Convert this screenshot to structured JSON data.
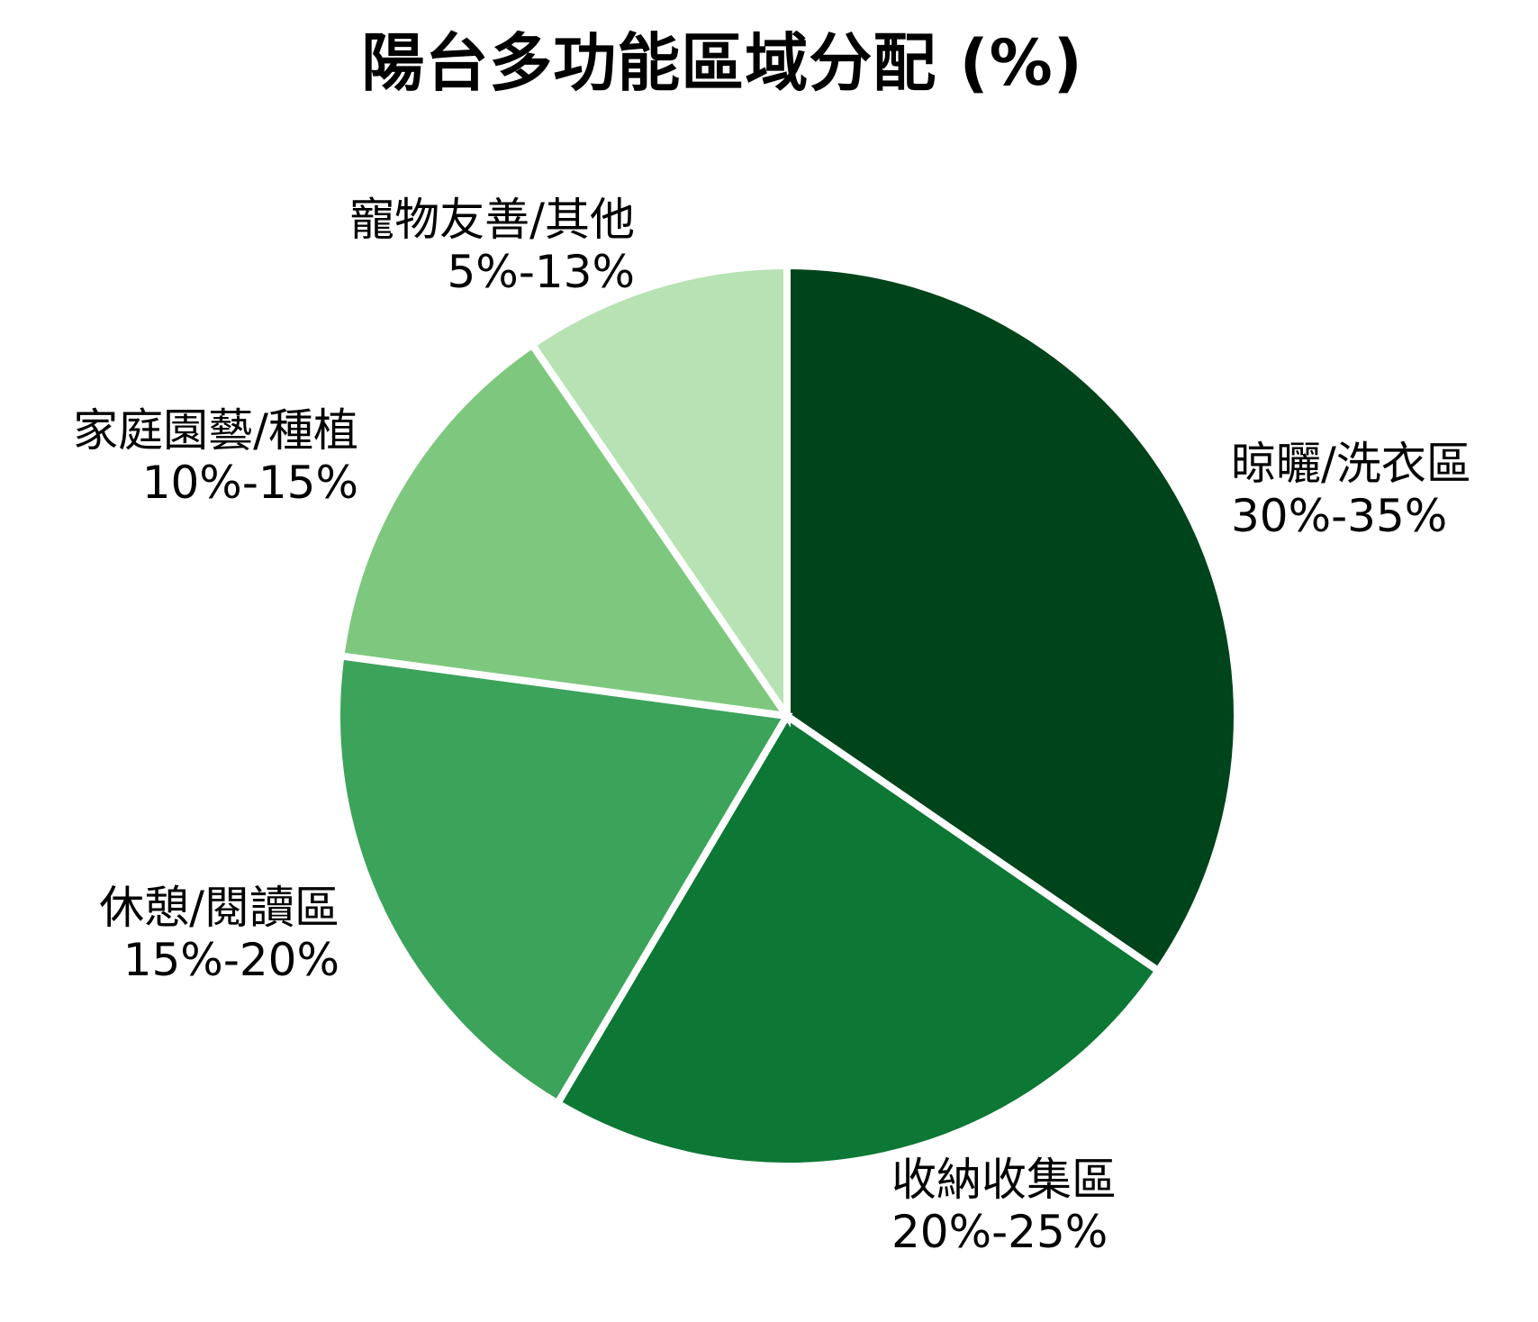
{
  "chart_data": {
    "type": "pie",
    "title": "陽台多功能區域分配 (%)",
    "start_angle": "top",
    "direction": "clockwise",
    "legend_position": "none",
    "grid": false,
    "slices": [
      {
        "label": "晾曬/洗衣區",
        "range": "30%-35%",
        "value": 32.5,
        "color": "#00441b"
      },
      {
        "label": "收納收集區",
        "range": "20%-25%",
        "value": 22.5,
        "color": "#0d7735"
      },
      {
        "label": "休憩/閱讀區",
        "range": "15%-20%",
        "value": 17.5,
        "color": "#3ca35a"
      },
      {
        "label": "家庭園藝/種植",
        "range": "10%-15%",
        "value": 12.5,
        "color": "#7dc87e"
      },
      {
        "label": "寵物友善/其他",
        "range": "5%-13%",
        "value": 9,
        "color": "#b7e2b3"
      }
    ],
    "slice_border_color": "#ffffff"
  }
}
